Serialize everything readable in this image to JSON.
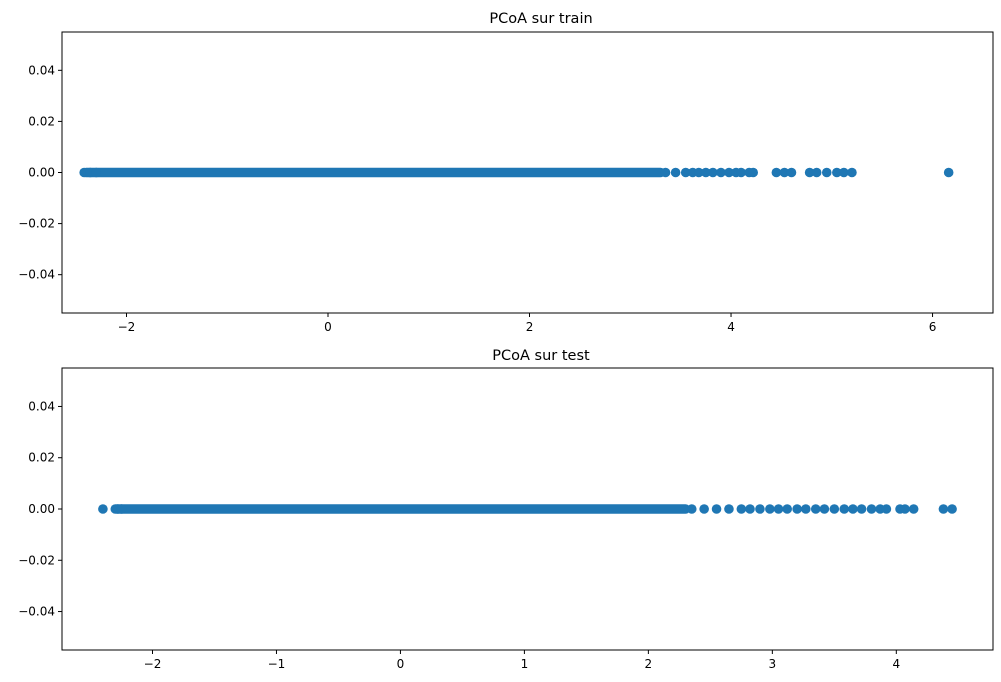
{
  "colors": {
    "marker": "#1f77b4",
    "axes": "#000000",
    "background": "#ffffff"
  },
  "chart_data": [
    {
      "type": "scatter",
      "title": "PCoA sur train",
      "xlabel": "",
      "ylabel": "",
      "xlim": [
        -2.64,
        6.6
      ],
      "ylim": [
        -0.055,
        0.055
      ],
      "xticks": [
        -2,
        0,
        2,
        4,
        6
      ],
      "xtick_labels": [
        "−2",
        "0",
        "2",
        "4",
        "6"
      ],
      "yticks": [
        -0.04,
        -0.02,
        0.0,
        0.02,
        0.04
      ],
      "ytick_labels": [
        "−0.04",
        "−0.02",
        "0.00",
        "0.02",
        "0.04"
      ],
      "grid": false,
      "x_dense_range": [
        -2.4,
        3.3
      ],
      "y_value": 0.0,
      "x": [
        -2.42,
        -2.36,
        -2.3,
        3.35,
        3.45,
        3.55,
        3.62,
        3.68,
        3.75,
        3.82,
        3.9,
        3.98,
        4.05,
        4.1,
        4.18,
        4.22,
        4.45,
        4.53,
        4.6,
        4.78,
        4.85,
        4.95,
        5.05,
        5.12,
        5.2,
        6.16
      ],
      "y": [
        0,
        0,
        0,
        0,
        0,
        0,
        0,
        0,
        0,
        0,
        0,
        0,
        0,
        0,
        0,
        0,
        0,
        0,
        0,
        0,
        0,
        0,
        0,
        0,
        0,
        0
      ]
    },
    {
      "type": "scatter",
      "title": "PCoA sur test",
      "xlabel": "",
      "ylabel": "",
      "xlim": [
        -2.73,
        4.78
      ],
      "ylim": [
        -0.055,
        0.055
      ],
      "xticks": [
        -2,
        -1,
        0,
        1,
        2,
        3,
        4
      ],
      "xtick_labels": [
        "−2",
        "−1",
        "0",
        "1",
        "2",
        "3",
        "4"
      ],
      "yticks": [
        -0.04,
        -0.02,
        0.0,
        0.02,
        0.04
      ],
      "ytick_labels": [
        "−0.04",
        "−0.02",
        "0.00",
        "0.02",
        "0.04"
      ],
      "grid": false,
      "x_dense_range": [
        -2.3,
        2.3
      ],
      "y_value": 0.0,
      "x": [
        -2.4,
        -2.28,
        -2.25,
        2.35,
        2.45,
        2.55,
        2.65,
        2.75,
        2.82,
        2.9,
        2.98,
        3.05,
        3.12,
        3.2,
        3.27,
        3.35,
        3.42,
        3.5,
        3.58,
        3.65,
        3.72,
        3.8,
        3.87,
        3.92,
        4.03,
        4.07,
        4.14,
        4.38,
        4.45
      ],
      "y": [
        0,
        0,
        0,
        0,
        0,
        0,
        0,
        0,
        0,
        0,
        0,
        0,
        0,
        0,
        0,
        0,
        0,
        0,
        0,
        0,
        0,
        0,
        0,
        0,
        0,
        0,
        0,
        0,
        0
      ]
    }
  ]
}
